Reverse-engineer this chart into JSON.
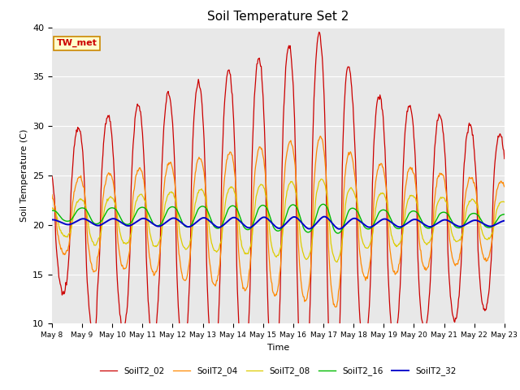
{
  "title": "Soil Temperature Set 2",
  "xlabel": "Time",
  "ylabel": "Soil Temperature (C)",
  "ylim": [
    10,
    40
  ],
  "annotation": "TW_met",
  "line_colors": {
    "SoilT2_02": "#cc0000",
    "SoilT2_04": "#ff8800",
    "SoilT2_08": "#ddcc00",
    "SoilT2_16": "#00bb00",
    "SoilT2_32": "#0000cc"
  },
  "legend_order": [
    "SoilT2_02",
    "SoilT2_04",
    "SoilT2_08",
    "SoilT2_16",
    "SoilT2_32"
  ],
  "axes_background": "#e8e8e8",
  "grid_color": "#ffffff",
  "start_day": 8,
  "end_day": 23,
  "points_per_day": 48
}
